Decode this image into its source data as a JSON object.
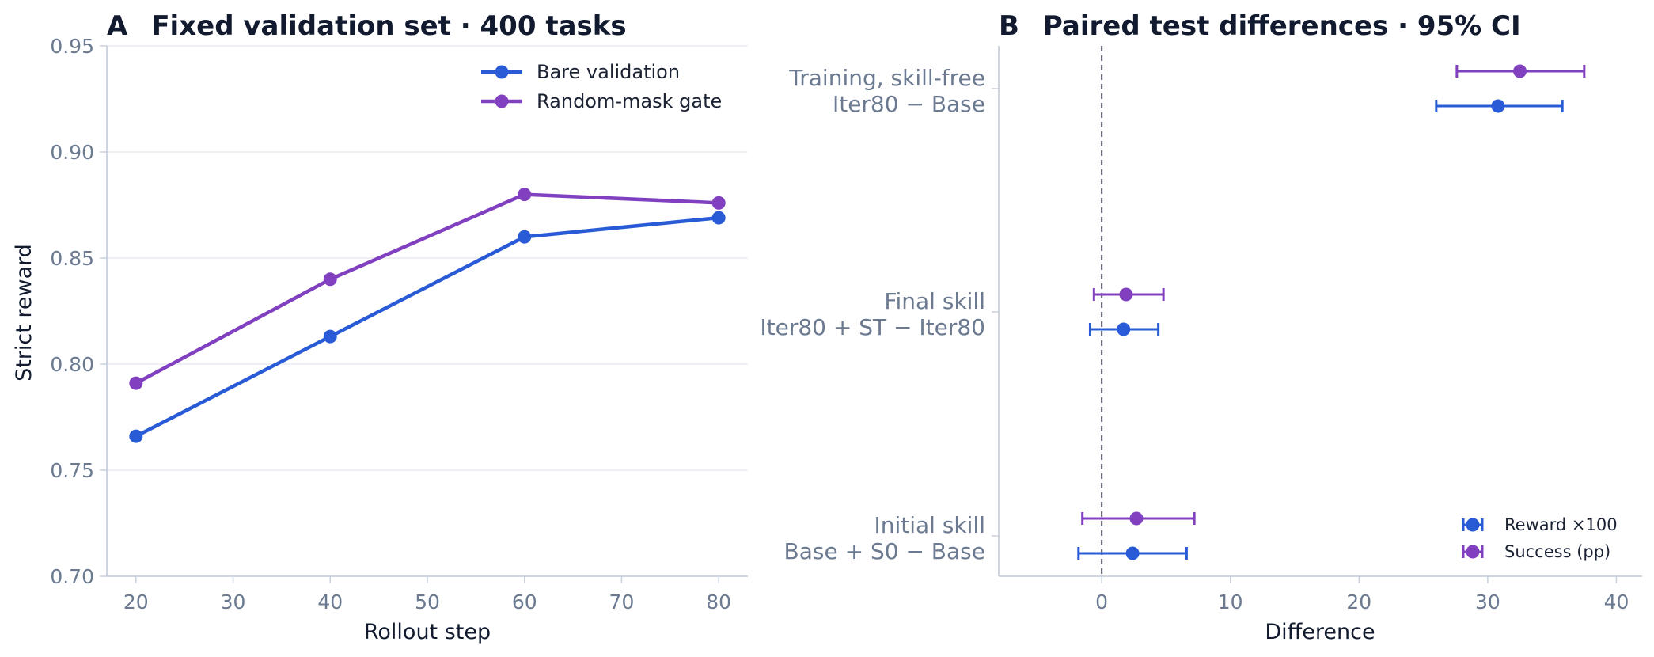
{
  "chart_data": [
    {
      "type": "line",
      "panel": "A",
      "title": "Fixed validation set · 400 tasks",
      "xlabel": "Rollout step",
      "ylabel": "Strict reward",
      "x": [
        20,
        40,
        60,
        80
      ],
      "xlim": [
        17,
        83
      ],
      "ylim": [
        0.7,
        0.95
      ],
      "xticks": [
        "20",
        "30",
        "40",
        "50",
        "60",
        "70",
        "80"
      ],
      "yticks": [
        "0.70",
        "0.75",
        "0.80",
        "0.85",
        "0.90",
        "0.95"
      ],
      "grid": "y",
      "legend_position": "top-right",
      "series": [
        {
          "name": "Bare validation",
          "color": "#2a5bd7",
          "values": [
            0.766,
            0.813,
            0.86,
            0.869
          ]
        },
        {
          "name": "Random-mask gate",
          "color": "#8040c0",
          "values": [
            0.791,
            0.84,
            0.88,
            0.876
          ]
        }
      ]
    },
    {
      "type": "errorbar",
      "panel": "B",
      "title": "Paired test differences · 95% CI",
      "xlabel": "Difference",
      "xlim": [
        -8,
        42
      ],
      "xticks": [
        "0",
        "10",
        "20",
        "30",
        "40"
      ],
      "reference_line": 0,
      "legend_position": "bottom-right",
      "categories": [
        {
          "line1": "Training, skill-free",
          "line2": "Iter80 − Base"
        },
        {
          "line1": "Final skill",
          "line2": "Iter80 + ST − Iter80"
        },
        {
          "line1": "Initial skill",
          "line2": "Base + S0 − Base"
        }
      ],
      "series": [
        {
          "name": "Reward ×100",
          "color": "#2a5bd7",
          "points": [
            {
              "value": 30.8,
              "ci": [
                26.0,
                35.8
              ]
            },
            {
              "value": 1.7,
              "ci": [
                -0.9,
                4.4
              ]
            },
            {
              "value": 2.4,
              "ci": [
                -1.8,
                6.6
              ]
            }
          ]
        },
        {
          "name": "Success (pp)",
          "color": "#8040c0",
          "points": [
            {
              "value": 32.5,
              "ci": [
                27.6,
                37.5
              ]
            },
            {
              "value": 1.9,
              "ci": [
                -0.6,
                4.8
              ]
            },
            {
              "value": 2.7,
              "ci": [
                -1.5,
                7.2
              ]
            }
          ]
        }
      ]
    }
  ]
}
